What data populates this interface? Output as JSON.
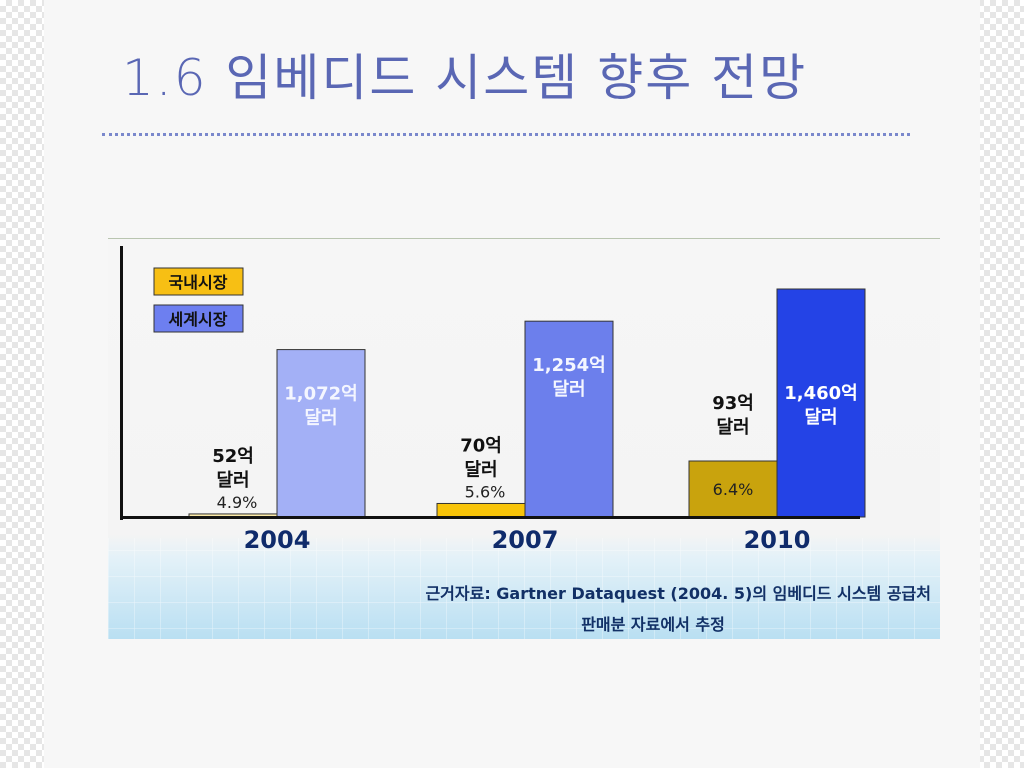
{
  "slide": {
    "title": "1.6 임베디드 시스템 향후 전망"
  },
  "chart_data": {
    "type": "bar",
    "categories": [
      "2004",
      "2007",
      "2010"
    ],
    "series": [
      {
        "name": "국내시장",
        "values": [
          52,
          70,
          93
        ],
        "labels": [
          "52억\n달러",
          "70억\n달러",
          "93억\n달러"
        ],
        "share": [
          "4.9%",
          "5.6%",
          "6.4%"
        ],
        "colors": [
          "#fbe9a7",
          "#f8c409",
          "#c9a30d"
        ]
      },
      {
        "name": "세계시장",
        "values": [
          1072,
          1254,
          1460
        ],
        "labels": [
          "1,072억\n달러",
          "1,254억\n달러",
          "1,460억\n달러"
        ],
        "colors": [
          "#a3b0f6",
          "#6c7fec",
          "#2443e6"
        ]
      }
    ],
    "unit": "억 달러",
    "legend": "top-left",
    "source_note": [
      "근거자료: Gartner Dataquest (2004. 5)의 임베디드 시스템 공급처",
      "판매분 자료에서 추정"
    ],
    "colors": {
      "axis": "#111111",
      "legend_domestic": "#f7bf14",
      "legend_world": "#6d7ff0"
    }
  }
}
